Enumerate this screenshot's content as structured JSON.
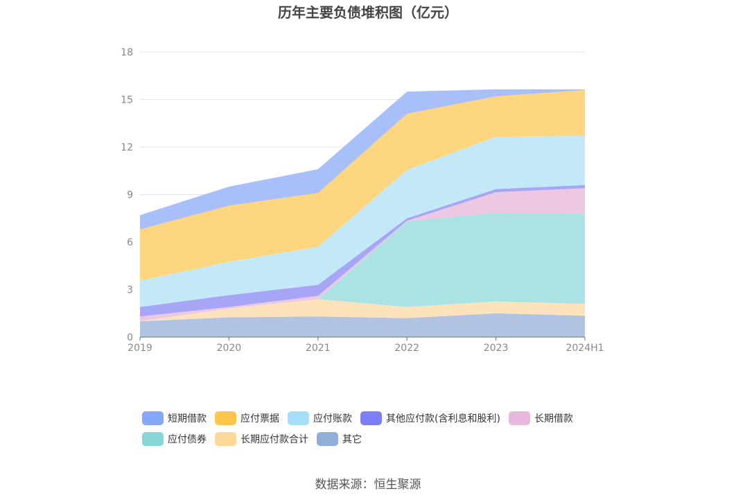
{
  "chart_data": {
    "type": "area",
    "stacked": true,
    "title": "历年主要负债堆积图（亿元）",
    "x": [
      "2019",
      "2020",
      "2021",
      "2022",
      "2023",
      "2024H1"
    ],
    "ylim": [
      0,
      18
    ],
    "yticks": [
      0,
      3,
      6,
      9,
      12,
      15,
      18
    ],
    "grid": true,
    "legend_position": "bottom",
    "series": [
      {
        "name": "其它",
        "color": "#91aedb",
        "fill": "#b1c3e3",
        "values": [
          1.0,
          1.25,
          1.3,
          1.2,
          1.5,
          1.35
        ]
      },
      {
        "name": "长期应付款合计",
        "color": "#fdd89b",
        "fill": "#fde3bc",
        "values": [
          0.0,
          0.55,
          1.1,
          0.7,
          0.75,
          0.75
        ]
      },
      {
        "name": "应付债券",
        "color": "#86d6d5",
        "fill": "#abe2e3",
        "values": [
          0.0,
          0.0,
          0.0,
          5.4,
          5.6,
          5.7
        ]
      },
      {
        "name": "长期借款",
        "color": "#e8b9dc",
        "fill": "#ecc8e3",
        "values": [
          0.3,
          0.1,
          0.2,
          0.05,
          1.3,
          1.6
        ]
      },
      {
        "name": "其他应付款(含利息和股利)",
        "color": "#7b7ff6",
        "fill": "#a7a5f6",
        "values": [
          0.6,
          0.75,
          0.7,
          0.15,
          0.2,
          0.2
        ]
      },
      {
        "name": "应付账款",
        "color": "#a5def8",
        "fill": "#c3e9f9",
        "values": [
          1.65,
          2.1,
          2.4,
          3.05,
          3.3,
          3.1
        ]
      },
      {
        "name": "应付票据",
        "color": "#fdc74b",
        "fill": "#fed67f",
        "values": [
          3.25,
          3.55,
          3.4,
          3.55,
          2.55,
          2.9
        ]
      },
      {
        "name": "短期借款",
        "color": "#86a8f8",
        "fill": "#a9bffa",
        "values": [
          0.9,
          1.2,
          1.5,
          1.4,
          0.45,
          0.05
        ]
      }
    ]
  },
  "legend_rows": [
    [
      "短期借款",
      "应付票据",
      "应付账款",
      "其他应付款(含利息和股利)",
      "长期借款"
    ],
    [
      "应付债券",
      "长期应付款合计",
      "其它"
    ]
  ],
  "source": "数据来源：恒生聚源"
}
